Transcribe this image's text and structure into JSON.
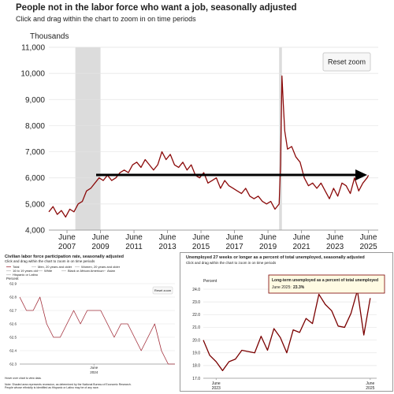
{
  "chart_data": [
    {
      "type": "line",
      "title": "People not in the labor force who want a job, seasonally adjusted",
      "subtitle": "Click and drag within the chart to zoom in on time periods",
      "y_label": "Thousands",
      "reset_button": "Reset zoom",
      "grid": true,
      "xlim": [
        "2006-05",
        "2026-01"
      ],
      "ylim": [
        4000,
        11000
      ],
      "yticks": [
        {
          "value": 4000,
          "label": "4,000"
        },
        {
          "value": 5000,
          "label": "5,000"
        },
        {
          "value": 6000,
          "label": "6,000"
        },
        {
          "value": 7000,
          "label": "7,000"
        },
        {
          "value": 8000,
          "label": "8,000"
        },
        {
          "value": 9000,
          "label": "9,000"
        },
        {
          "value": 10000,
          "label": "10,000"
        },
        {
          "value": 11000,
          "label": "11,000"
        }
      ],
      "xticks": [
        {
          "value": "2007-06",
          "label": [
            "June",
            "2007"
          ]
        },
        {
          "value": "2009-06",
          "label": [
            "June",
            "2009"
          ]
        },
        {
          "value": "2011-06",
          "label": [
            "June",
            "2011"
          ]
        },
        {
          "value": "2013-06",
          "label": [
            "June",
            "2013"
          ]
        },
        {
          "value": "2015-06",
          "label": [
            "June",
            "2015"
          ]
        },
        {
          "value": "2017-06",
          "label": [
            "June",
            "2017"
          ]
        },
        {
          "value": "2019-06",
          "label": [
            "June",
            "2019"
          ]
        },
        {
          "value": "2021-06",
          "label": [
            "June",
            "2021"
          ]
        },
        {
          "value": "2023-06",
          "label": [
            "June",
            "2023"
          ]
        },
        {
          "value": "2025-06",
          "label": [
            "June",
            "2025"
          ]
        }
      ],
      "shaded_periods": [
        [
          "2007-12",
          "2009-06"
        ],
        [
          "2020-02",
          "2020-04"
        ]
      ],
      "x": [
        "2006-05",
        "2006-08",
        "2006-11",
        "2007-02",
        "2007-05",
        "2007-08",
        "2007-11",
        "2008-02",
        "2008-05",
        "2008-08",
        "2008-11",
        "2009-02",
        "2009-05",
        "2009-08",
        "2009-11",
        "2010-02",
        "2010-05",
        "2010-08",
        "2010-11",
        "2011-02",
        "2011-05",
        "2011-08",
        "2011-11",
        "2012-02",
        "2012-05",
        "2012-08",
        "2012-11",
        "2013-02",
        "2013-05",
        "2013-08",
        "2013-11",
        "2014-02",
        "2014-05",
        "2014-08",
        "2014-11",
        "2015-02",
        "2015-05",
        "2015-08",
        "2015-11",
        "2016-02",
        "2016-05",
        "2016-08",
        "2016-11",
        "2017-02",
        "2017-05",
        "2017-08",
        "2017-11",
        "2018-02",
        "2018-05",
        "2018-08",
        "2018-11",
        "2019-02",
        "2019-05",
        "2019-08",
        "2019-11",
        "2020-02",
        "2020-03",
        "2020-04",
        "2020-05",
        "2020-06",
        "2020-08",
        "2020-11",
        "2021-02",
        "2021-05",
        "2021-08",
        "2021-11",
        "2022-02",
        "2022-05",
        "2022-08",
        "2022-11",
        "2023-02",
        "2023-05",
        "2023-08",
        "2023-11",
        "2024-02",
        "2024-05",
        "2024-08",
        "2024-11",
        "2025-02",
        "2025-05",
        "2025-06"
      ],
      "series": [
        {
          "name": "People not in the labor force who want a job",
          "color": "#8b0a0a",
          "values": [
            4700,
            4900,
            4600,
            4750,
            4500,
            4800,
            4700,
            5000,
            5100,
            5500,
            5600,
            5800,
            6000,
            5900,
            6100,
            5900,
            6000,
            6200,
            6300,
            6200,
            6500,
            6600,
            6400,
            6700,
            6500,
            6300,
            6500,
            7000,
            6700,
            6900,
            6500,
            6400,
            6600,
            6300,
            6500,
            6100,
            6000,
            6200,
            5800,
            5900,
            6000,
            5600,
            5900,
            5700,
            5600,
            5500,
            5400,
            5600,
            5300,
            5200,
            5300,
            5100,
            5000,
            5100,
            4800,
            5000,
            6500,
            9900,
            8800,
            7800,
            7100,
            7200,
            6800,
            6600,
            6000,
            5700,
            5800,
            5600,
            5800,
            5500,
            5200,
            5600,
            5300,
            5800,
            5700,
            5400,
            6000,
            5500,
            5800,
            6000,
            6100
          ]
        }
      ]
    },
    {
      "type": "line",
      "title": "Civilian labor force participation rate, seasonally adjusted",
      "subtitle": "Click and drag within the chart to zoom in on time periods",
      "y_label": "Percent",
      "reset_button": "Reset zoom",
      "grid": true,
      "xlim": [
        "2023-07",
        "2025-06"
      ],
      "ylim": [
        62.3,
        62.9
      ],
      "yticks": [
        62.3,
        62.4,
        62.5,
        62.6,
        62.7,
        62.8,
        62.9
      ],
      "xticks": [
        {
          "value": "2024-06",
          "label": [
            "June",
            "2024"
          ]
        }
      ],
      "hidden_series": [
        "Men, 20 years and older",
        "Women, 20 years and older",
        "16 to 19 years old",
        "White",
        "Black or African American",
        "Asian",
        "Hispanic or Latino"
      ],
      "notes": [
        "Hover over chart to view data.",
        "Note: Shaded area represents recession, as determined by the National Bureau of Economic Research.",
        "People whose ethnicity is identified as Hispanic or Latino may be of any race."
      ],
      "x": [
        "2023-07",
        "2023-08",
        "2023-09",
        "2023-10",
        "2023-11",
        "2023-12",
        "2024-01",
        "2024-02",
        "2024-03",
        "2024-04",
        "2024-05",
        "2024-06",
        "2024-07",
        "2024-08",
        "2024-09",
        "2024-10",
        "2024-11",
        "2024-12",
        "2025-01",
        "2025-02",
        "2025-03",
        "2025-04",
        "2025-05",
        "2025-06"
      ],
      "series": [
        {
          "name": "Total",
          "color": "#a3303c",
          "values": [
            62.8,
            62.7,
            62.7,
            62.8,
            62.6,
            62.5,
            62.5,
            62.6,
            62.7,
            62.6,
            62.7,
            62.7,
            62.7,
            62.6,
            62.5,
            62.6,
            62.6,
            62.5,
            62.4,
            62.5,
            62.6,
            62.4,
            62.3,
            62.3
          ]
        }
      ]
    },
    {
      "type": "line",
      "title": "Unemployed 27 weeks or longer as a percent of total unemployed, seasonally adjusted",
      "subtitle": "Click and drag within the chart to zoom in on time periods",
      "y_label": "Percent",
      "grid": true,
      "xlim": [
        "2023-04",
        "2025-07"
      ],
      "ylim": [
        17,
        24
      ],
      "yticks": [
        {
          "value": 17,
          "label": "17.0"
        },
        {
          "value": 18,
          "label": "18.0"
        },
        {
          "value": 19,
          "label": "19.0"
        },
        {
          "value": 20,
          "label": "20.0"
        },
        {
          "value": 21,
          "label": "21.0"
        },
        {
          "value": 22,
          "label": "22.0"
        },
        {
          "value": 23,
          "label": "23.0"
        },
        {
          "value": 24,
          "label": "24.0"
        }
      ],
      "xticks": [
        {
          "value": "2023-06",
          "label": [
            "June",
            "2023"
          ]
        },
        {
          "value": "2025-06",
          "label": [
            "June",
            "2025"
          ]
        }
      ],
      "tooltip": {
        "title": "Long-term unemployed as a percent of total unemployed",
        "date": "June 2025:",
        "value_label": "23.3%"
      },
      "x": [
        "2023-04",
        "2023-05",
        "2023-06",
        "2023-07",
        "2023-08",
        "2023-09",
        "2023-10",
        "2023-11",
        "2023-12",
        "2024-01",
        "2024-02",
        "2024-03",
        "2024-04",
        "2024-05",
        "2024-06",
        "2024-07",
        "2024-08",
        "2024-09",
        "2024-10",
        "2024-11",
        "2024-12",
        "2025-01",
        "2025-02",
        "2025-03",
        "2025-04",
        "2025-05",
        "2025-06"
      ],
      "series": [
        {
          "name": "Long-term unemployed as a percent of total unemployed",
          "color": "#7a0000",
          "values": [
            20.0,
            18.8,
            18.3,
            17.6,
            18.3,
            18.5,
            19.2,
            19.1,
            19.0,
            20.3,
            19.2,
            20.9,
            20.2,
            19.0,
            20.8,
            20.6,
            21.7,
            21.3,
            23.6,
            22.8,
            22.3,
            21.1,
            21.0,
            22.1,
            23.9,
            20.4,
            23.3
          ]
        }
      ]
    }
  ]
}
